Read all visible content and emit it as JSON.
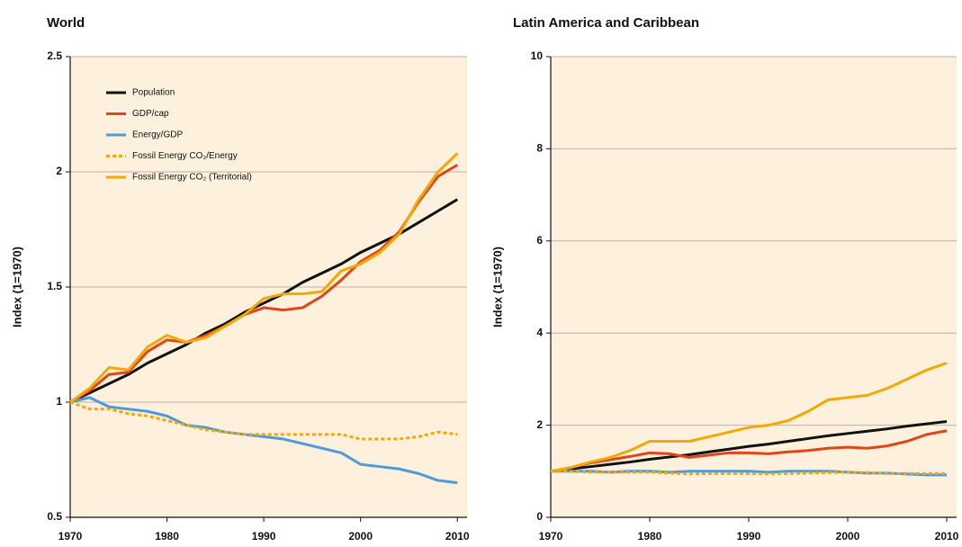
{
  "chart_data": [
    {
      "type": "line",
      "title": "World",
      "ylabel": "Index (1=1970)",
      "x": [
        1970,
        1972,
        1974,
        1976,
        1978,
        1980,
        1982,
        1984,
        1986,
        1988,
        1990,
        1992,
        1994,
        1996,
        1998,
        2000,
        2002,
        2004,
        2006,
        2008,
        2010
      ],
      "xlim": [
        1970,
        2011
      ],
      "xticks": [
        1970,
        1980,
        1990,
        2000,
        2010
      ],
      "ylim": [
        0.5,
        2.5
      ],
      "yticks": [
        0.5,
        1.0,
        1.5,
        2.0,
        2.5
      ],
      "grid": true,
      "legend": "upper left",
      "series": [
        {
          "name": "Population",
          "color": "#111111",
          "style": "solid",
          "values": [
            1.0,
            1.04,
            1.08,
            1.12,
            1.17,
            1.21,
            1.25,
            1.3,
            1.34,
            1.39,
            1.43,
            1.47,
            1.52,
            1.56,
            1.6,
            1.65,
            1.69,
            1.73,
            1.78,
            1.83,
            1.88
          ]
        },
        {
          "name": "GDP/cap",
          "color": "#e0461a",
          "style": "solid",
          "values": [
            1.0,
            1.05,
            1.12,
            1.13,
            1.22,
            1.27,
            1.26,
            1.29,
            1.33,
            1.38,
            1.41,
            1.4,
            1.41,
            1.46,
            1.53,
            1.61,
            1.66,
            1.74,
            1.87,
            1.98,
            2.03
          ]
        },
        {
          "name": "Energy/GDP",
          "color": "#4f9ad8",
          "style": "solid",
          "values": [
            1.0,
            1.02,
            0.98,
            0.97,
            0.96,
            0.94,
            0.9,
            0.89,
            0.87,
            0.86,
            0.85,
            0.84,
            0.82,
            0.8,
            0.78,
            0.73,
            0.72,
            0.71,
            0.69,
            0.66,
            0.65
          ]
        },
        {
          "name": "Fossil Energy CO₂/Energy",
          "color": "#f5a800",
          "style": "dashed",
          "values": [
            1.0,
            0.97,
            0.97,
            0.95,
            0.94,
            0.92,
            0.9,
            0.88,
            0.87,
            0.86,
            0.86,
            0.86,
            0.86,
            0.86,
            0.86,
            0.84,
            0.84,
            0.84,
            0.85,
            0.87,
            0.86
          ]
        },
        {
          "name": "Fossil Energy CO₂ (Territorial)",
          "color": "#f5a800",
          "style": "solid",
          "values": [
            1.0,
            1.06,
            1.15,
            1.14,
            1.24,
            1.29,
            1.26,
            1.28,
            1.33,
            1.38,
            1.45,
            1.47,
            1.47,
            1.48,
            1.57,
            1.6,
            1.65,
            1.73,
            1.88,
            2.0,
            2.08
          ]
        }
      ]
    },
    {
      "type": "line",
      "title": "Latin America and Caribbean",
      "ylabel": "Index (1=1970)",
      "x": [
        1970,
        1972,
        1974,
        1976,
        1978,
        1980,
        1982,
        1984,
        1986,
        1988,
        1990,
        1992,
        1994,
        1996,
        1998,
        2000,
        2002,
        2004,
        2006,
        2008,
        2010
      ],
      "xlim": [
        1970,
        2011
      ],
      "xticks": [
        1970,
        1980,
        1990,
        2000,
        2010
      ],
      "ylim": [
        0,
        10
      ],
      "yticks": [
        0,
        2,
        4,
        6,
        8,
        10
      ],
      "grid": true,
      "series": [
        {
          "color": "#111111",
          "style": "solid",
          "values": [
            1.0,
            1.05,
            1.1,
            1.15,
            1.2,
            1.26,
            1.31,
            1.36,
            1.42,
            1.48,
            1.54,
            1.59,
            1.65,
            1.71,
            1.77,
            1.82,
            1.87,
            1.92,
            1.98,
            2.03,
            2.08
          ]
        },
        {
          "color": "#e0461a",
          "style": "solid",
          "values": [
            1.0,
            1.08,
            1.18,
            1.25,
            1.32,
            1.4,
            1.38,
            1.3,
            1.35,
            1.4,
            1.4,
            1.38,
            1.42,
            1.45,
            1.5,
            1.52,
            1.5,
            1.55,
            1.65,
            1.8,
            1.88
          ]
        },
        {
          "color": "#4f9ad8",
          "style": "solid",
          "values": [
            1.0,
            1.0,
            1.0,
            0.98,
            1.0,
            1.0,
            0.98,
            1.0,
            1.0,
            1.0,
            1.0,
            0.98,
            1.0,
            1.0,
            1.0,
            0.98,
            0.96,
            0.96,
            0.94,
            0.92,
            0.92
          ]
        },
        {
          "color": "#f5a800",
          "style": "dashed",
          "values": [
            1.0,
            1.0,
            0.98,
            0.98,
            0.98,
            0.98,
            0.96,
            0.94,
            0.95,
            0.95,
            0.95,
            0.94,
            0.95,
            0.96,
            0.97,
            0.98,
            0.97,
            0.95,
            0.95,
            0.95,
            0.95
          ]
        },
        {
          "color": "#f5a800",
          "style": "solid",
          "values": [
            1.0,
            1.08,
            1.2,
            1.3,
            1.45,
            1.65,
            1.65,
            1.65,
            1.75,
            1.85,
            1.95,
            2.0,
            2.1,
            2.3,
            2.55,
            2.6,
            2.65,
            2.8,
            3.0,
            3.2,
            3.35
          ]
        }
      ]
    }
  ]
}
